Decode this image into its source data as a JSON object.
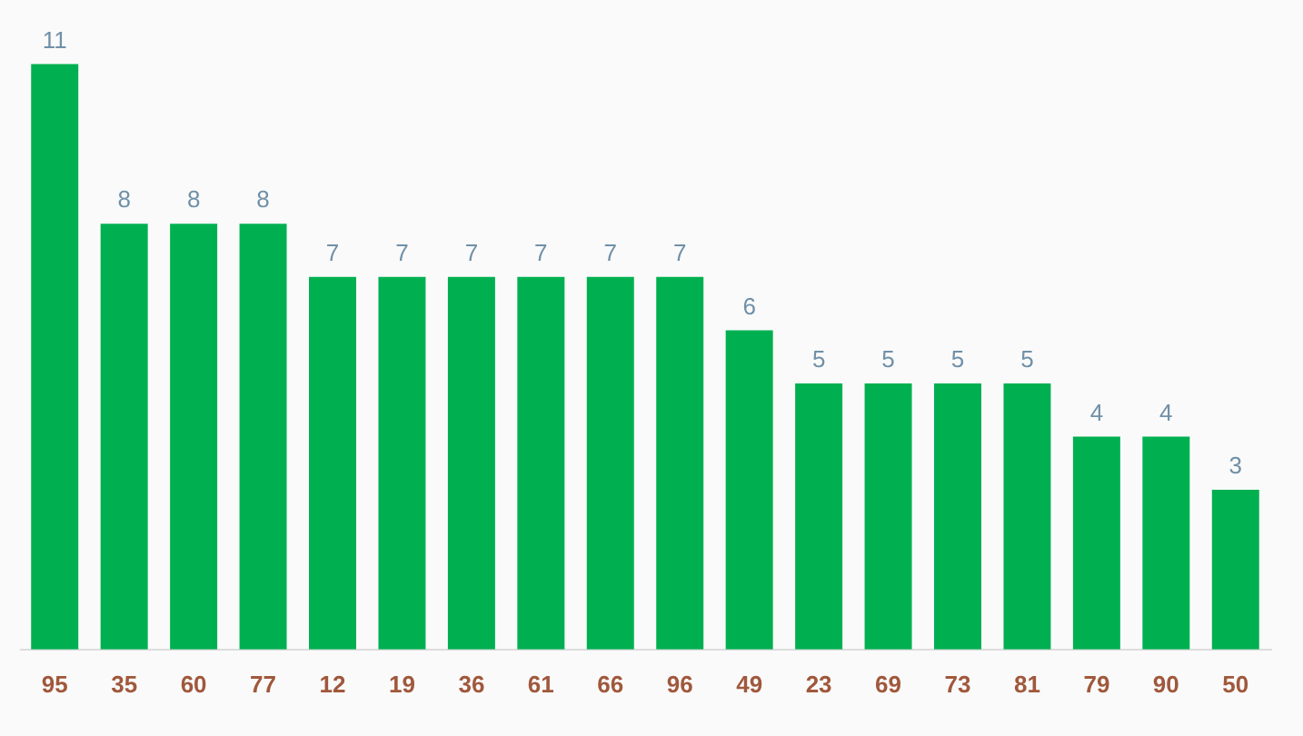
{
  "chart_data": {
    "type": "bar",
    "categories": [
      "95",
      "35",
      "60",
      "77",
      "12",
      "19",
      "36",
      "61",
      "66",
      "96",
      "49",
      "23",
      "69",
      "73",
      "81",
      "79",
      "90",
      "50"
    ],
    "values": [
      11,
      8,
      8,
      8,
      7,
      7,
      7,
      7,
      7,
      7,
      6,
      5,
      5,
      5,
      5,
      4,
      4,
      3
    ],
    "color": "#00b050",
    "data_labels": true
  }
}
